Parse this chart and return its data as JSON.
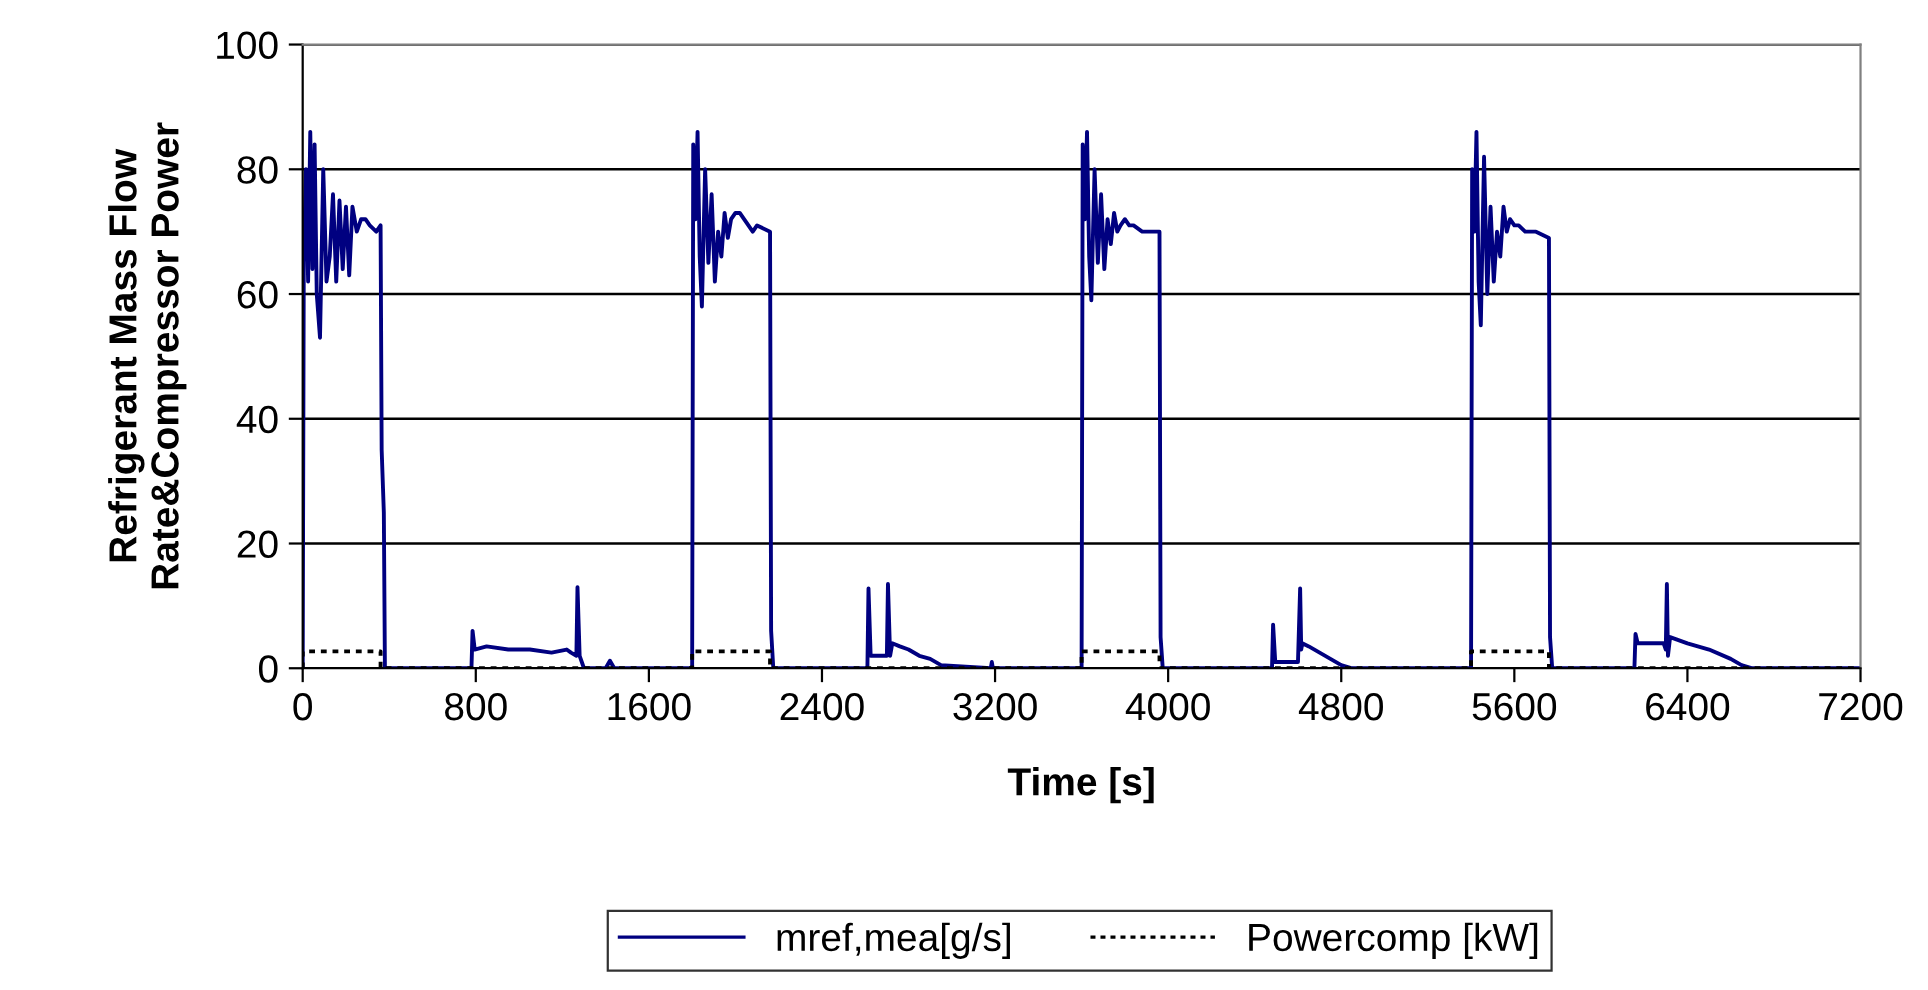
{
  "chart_data": {
    "type": "line",
    "xlabel": "Time [s]",
    "ylabel": "Refrigerant Mass Flow\nRate&Compressor Power",
    "xlim": [
      0,
      7200
    ],
    "xticks": [
      0,
      800,
      1600,
      2400,
      3200,
      4000,
      4800,
      5600,
      6400,
      7200
    ],
    "ylim": [
      0,
      100
    ],
    "yticks": [
      0,
      20,
      40,
      60,
      80,
      100
    ],
    "grid": "y",
    "legend": "bottom",
    "marker": "none",
    "series": [
      {
        "name": "mref,mea[g/s]",
        "color": "#000080",
        "line_style": "solid",
        "x": [
          0,
          5,
          15,
          25,
          35,
          45,
          55,
          65,
          80,
          95,
          110,
          125,
          140,
          155,
          170,
          185,
          200,
          215,
          230,
          250,
          270,
          290,
          310,
          340,
          360,
          365,
          375,
          380,
          780,
          785,
          795,
          850,
          950,
          1050,
          1150,
          1220,
          1240,
          1265,
          1270,
          1280,
          1300,
          1400,
          1420,
          1440,
          1800,
          1805,
          1815,
          1825,
          1835,
          1845,
          1860,
          1875,
          1890,
          1905,
          1920,
          1935,
          1950,
          1965,
          1980,
          2000,
          2020,
          2040,
          2060,
          2080,
          2100,
          2160,
          2165,
          2175,
          2610,
          2615,
          2625,
          2700,
          2705,
          2715,
          2725,
          2760,
          2800,
          2850,
          2900,
          2950,
          3180,
          3185,
          3190,
          3600,
          3605,
          3615,
          3625,
          3635,
          3645,
          3660,
          3675,
          3690,
          3705,
          3720,
          3735,
          3750,
          3765,
          3780,
          3800,
          3820,
          3840,
          3880,
          3920,
          3960,
          3965,
          3975,
          4480,
          4485,
          4495,
          4600,
          4610,
          4615,
          4620,
          4650,
          4700,
          4750,
          4800,
          4850,
          5400,
          5405,
          5415,
          5425,
          5435,
          5445,
          5460,
          5475,
          5490,
          5505,
          5520,
          5535,
          5550,
          5565,
          5580,
          5600,
          5620,
          5650,
          5700,
          5760,
          5765,
          5775,
          6155,
          6160,
          6170,
          6290,
          6300,
          6305,
          6310,
          6320,
          6400,
          6500,
          6600,
          6650,
          6700,
          7200
        ],
        "values": [
          0,
          65,
          80,
          62,
          86,
          64,
          84,
          60,
          53,
          80,
          62,
          66,
          76,
          62,
          75,
          64,
          74,
          63,
          74,
          70,
          72,
          72,
          71,
          70,
          71,
          35,
          25,
          0,
          0,
          6,
          3,
          3.5,
          3,
          3,
          2.5,
          3,
          2.5,
          2,
          13,
          2,
          0,
          0,
          1.2,
          0,
          0,
          84,
          72,
          86,
          66,
          58,
          80,
          65,
          76,
          62,
          70,
          66,
          73,
          69,
          72,
          73,
          73,
          72,
          71,
          70,
          71,
          70,
          6,
          0,
          0,
          12.8,
          2,
          2,
          13.5,
          2,
          4,
          3.5,
          3,
          2,
          1.5,
          0.5,
          0,
          1,
          0,
          0,
          84,
          72,
          86,
          66,
          59,
          80,
          65,
          76,
          64,
          72,
          68,
          73,
          70,
          71,
          72,
          71,
          71,
          70,
          70,
          70,
          5,
          0,
          0,
          7,
          1,
          1,
          12.8,
          3,
          4,
          3.5,
          2.5,
          1.5,
          0.5,
          0,
          0,
          80,
          70,
          86,
          62,
          55,
          82,
          60,
          74,
          62,
          70,
          66,
          74,
          70,
          72,
          71,
          71,
          70,
          70,
          69,
          5,
          0,
          0,
          5.5,
          4,
          4,
          3,
          13.5,
          2,
          5,
          4,
          3,
          1.5,
          0.5,
          0,
          0
        ]
      },
      {
        "name": "Powercomp [kW]",
        "color": "#000000",
        "line_style": "dotted",
        "x": [
          0,
          0,
          360,
          360,
          1800,
          1800,
          2160,
          2160,
          3600,
          3600,
          3960,
          3960,
          5400,
          5400,
          5760,
          5760,
          7200
        ],
        "values": [
          0,
          2.7,
          2.7,
          0,
          0,
          2.7,
          2.7,
          0,
          0,
          2.7,
          2.7,
          0,
          0,
          2.7,
          2.7,
          0,
          0
        ]
      }
    ]
  }
}
